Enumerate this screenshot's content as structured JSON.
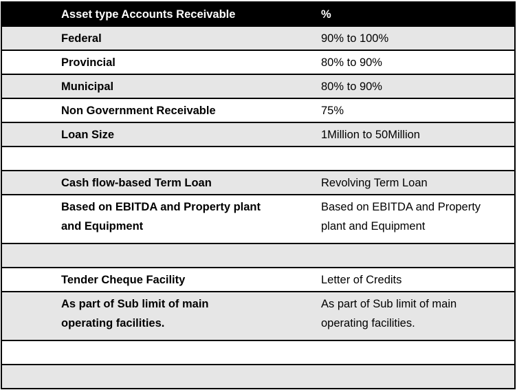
{
  "header": {
    "col1": "Asset type Accounts Receivable",
    "col2": "%"
  },
  "rows": [
    {
      "col1": "Federal",
      "col2": "90% to 100%"
    },
    {
      "col1": "Provincial",
      "col2": "80% to 90%"
    },
    {
      "col1": "Municipal",
      "col2": "80% to 90%"
    },
    {
      "col1": "Non Government Receivable",
      "col2": "75%"
    },
    {
      "col1": "Loan Size",
      "col2": "1Million to 50Million"
    },
    {
      "col1": "",
      "col2": ""
    },
    {
      "col1": "Cash flow-based Term Loan",
      "col2": "Revolving Term Loan"
    },
    {
      "col1": "Based on EBITDA and Property plant and Equipment",
      "col2": "Based on EBITDA and Property plant and Equipment"
    },
    {
      "col1": "",
      "col2": ""
    },
    {
      "col1": "Tender Cheque Facility",
      "col2": "Letter of Credits"
    },
    {
      "col1": "As part of Sub limit of main operating facilities.",
      "col2": "As part of Sub limit of main operating facilities."
    },
    {
      "col1": "",
      "col2": ""
    },
    {
      "col1": "",
      "col2": ""
    }
  ],
  "colors": {
    "header_bg": "#000000",
    "row_alt_bg": "#e6e6e6"
  }
}
